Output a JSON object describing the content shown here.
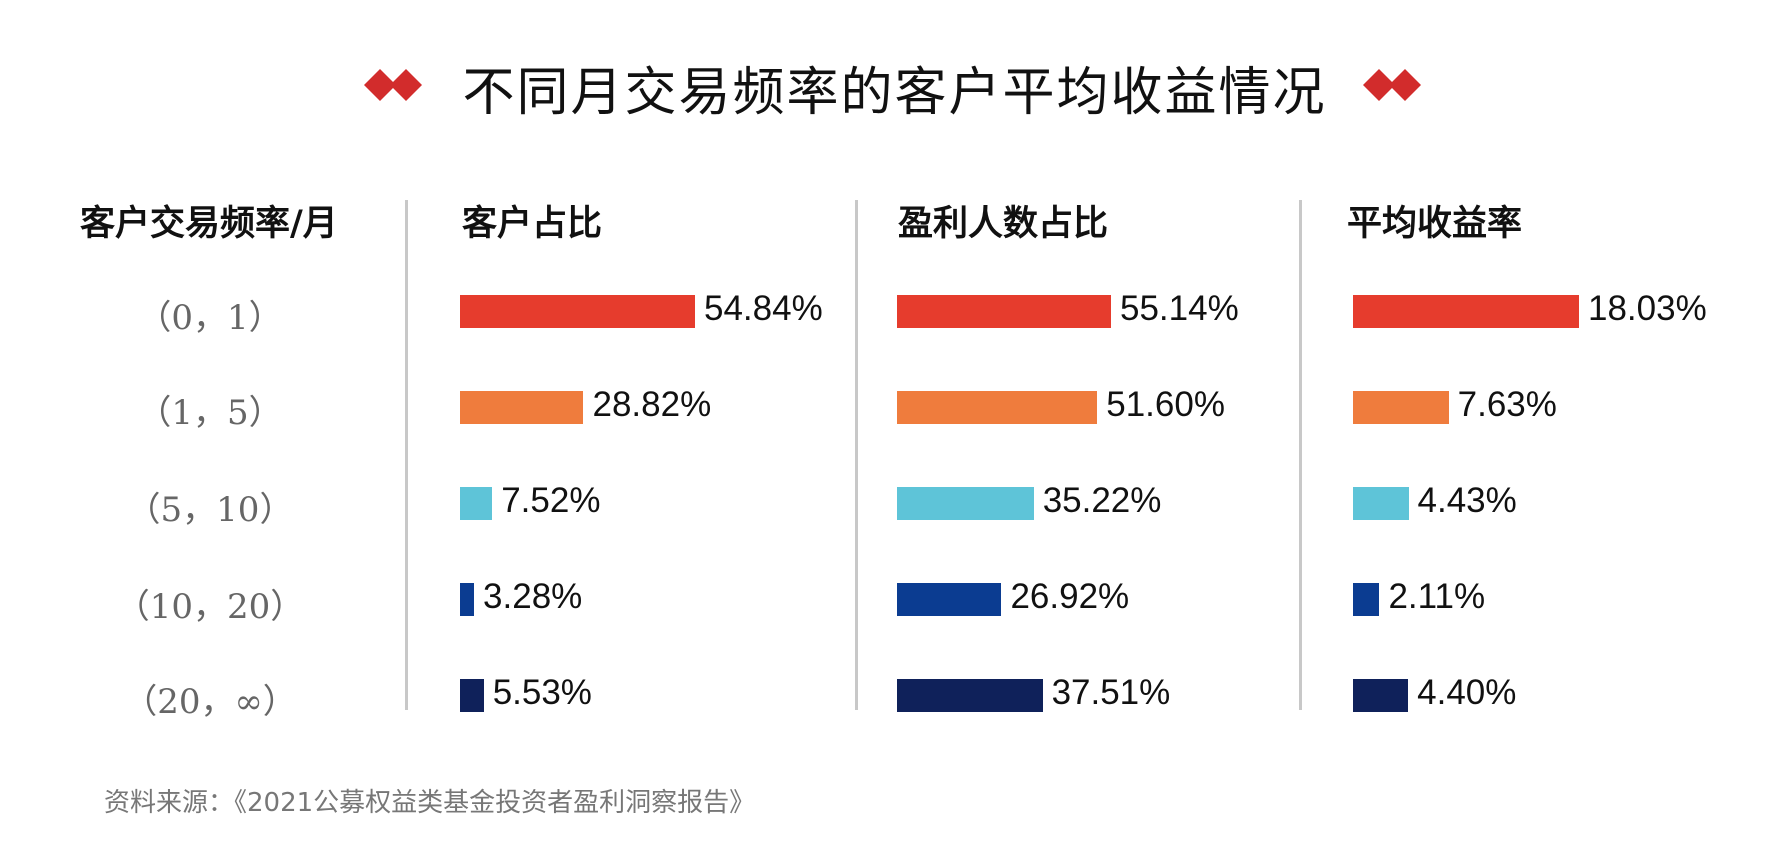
{
  "title": "不同月交易频率的客户平均收益情况",
  "row_header": "客户交易频率/月",
  "source": "资料来源：《2021公募权益类基金投资者盈利洞察报告》",
  "colors": {
    "accent": "#d22c2c",
    "bars": [
      "#e63c2d",
      "#ef7c3d",
      "#5ec4d8",
      "#0b3c91",
      "#0f215a"
    ]
  },
  "chart_data": {
    "type": "bar",
    "categories": [
      "（0，1）",
      "（1，5）",
      "（5，10）",
      "（10，20）",
      "（20，∞）"
    ],
    "series": [
      {
        "name": "客户占比",
        "values": [
          54.84,
          28.82,
          7.52,
          3.28,
          5.53
        ],
        "labels": [
          "54.84%",
          "28.82%",
          "7.52%",
          "3.28%",
          "5.53%"
        ]
      },
      {
        "name": "盈利人数占比",
        "values": [
          55.14,
          51.6,
          35.22,
          26.92,
          37.51
        ],
        "labels": [
          "55.14%",
          "51.60%",
          "35.22%",
          "26.92%",
          "37.51%"
        ]
      },
      {
        "name": "平均收益率",
        "values": [
          18.03,
          7.63,
          4.43,
          2.11,
          4.4
        ],
        "labels": [
          "18.03%",
          "7.63%",
          "4.43%",
          "2.11%",
          "4.40%"
        ]
      }
    ]
  }
}
